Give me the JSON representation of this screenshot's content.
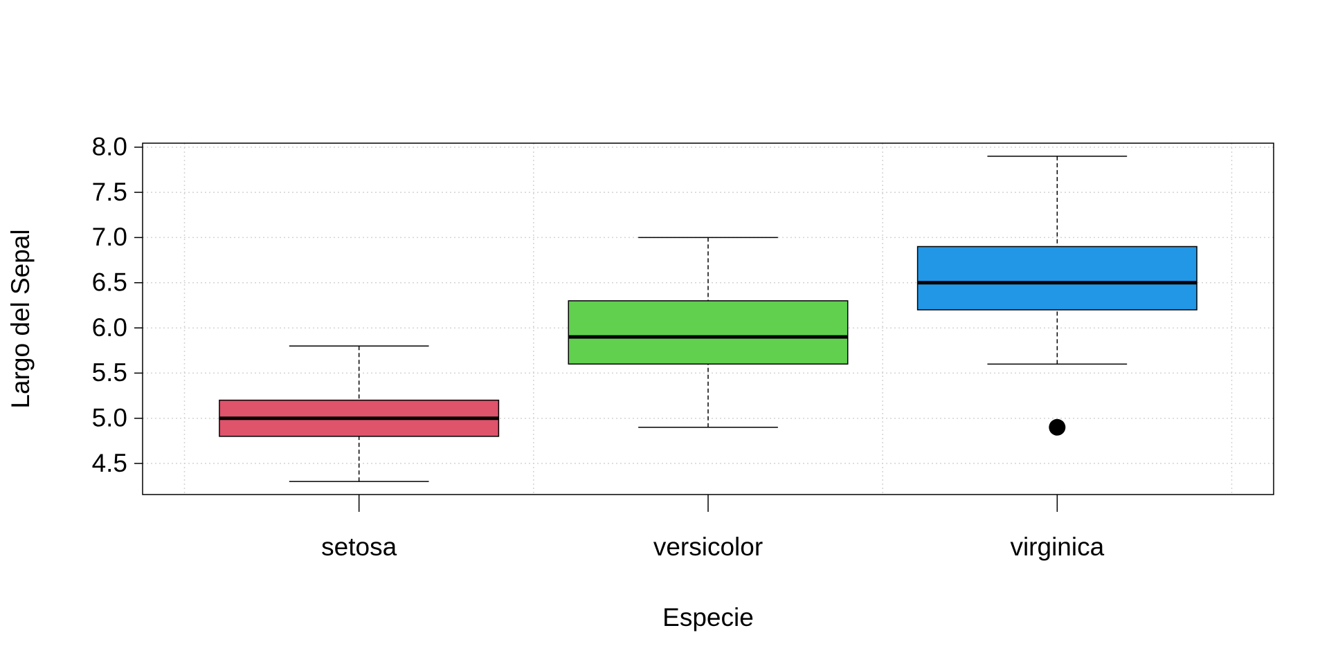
{
  "chart_data": {
    "type": "boxplot",
    "x_label": "Especie",
    "y_label": "Largo del Sepal",
    "categories": [
      "setosa",
      "versicolor",
      "virginica"
    ],
    "colors": [
      "#DF536B",
      "#61D04F",
      "#2297E6"
    ],
    "boxes": [
      {
        "min": 4.3,
        "q1": 4.8,
        "median": 5.0,
        "q3": 5.2,
        "max": 5.8,
        "outliers": []
      },
      {
        "min": 4.9,
        "q1": 5.6,
        "median": 5.9,
        "q3": 6.3,
        "max": 7.0,
        "outliers": []
      },
      {
        "min": 5.6,
        "q1": 6.2,
        "median": 6.5,
        "q3": 6.9,
        "max": 7.9,
        "outliers": [
          4.9
        ]
      }
    ],
    "ylim": [
      4.156,
      8.044
    ],
    "yticks": [
      4.5,
      {
        "value": 5,
        "label": "5.0"
      },
      5.5,
      {
        "value": 6,
        "label": "6.0"
      },
      6.5,
      {
        "value": 7,
        "label": "7.0"
      },
      7.5,
      {
        "value": 8,
        "label": "8.0"
      }
    ],
    "grid": true
  }
}
